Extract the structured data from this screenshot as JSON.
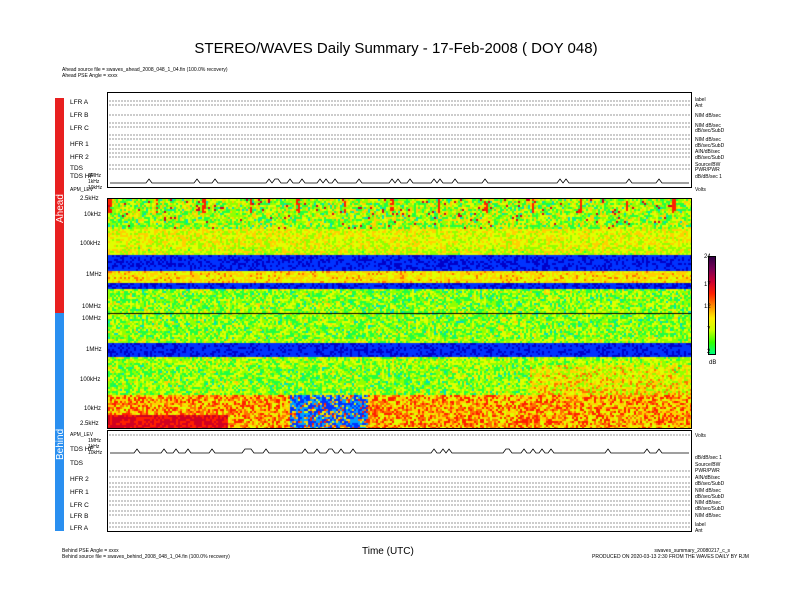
{
  "title": "STEREO/WAVES Daily Summary - 17-Feb-2008 ( DOY 048)",
  "ahead_info": [
    "Ahead source file = swaves_ahead_2008_048_1_04.fin (100.0% recovery)",
    "Ahead PSE Angle = xxxx"
  ],
  "behind_info": [
    "Behind PSE Angle = xxxx",
    "Behind source file = swaves_behind_2008_048_1_04.fin (100.0% recovery)"
  ],
  "footer_right": [
    "swaves_summary_20080217_c_s",
    "PRODUCED ON 2020-03-13 2:30 FROM THE WAVES DAILY BY RJM"
  ],
  "xlabel": "Time (UTC)",
  "side_labels": {
    "ahead": "Ahead",
    "behind": "Behind"
  },
  "colors": {
    "ahead_bar": "#e82020",
    "behind_bar": "#2a8ff0"
  },
  "ahead_rows": [
    {
      "name": "LFR A",
      "right": [
        "label",
        "Ant"
      ]
    },
    {
      "name": "LFR B",
      "right": [
        "NIM dB/sec"
      ]
    },
    {
      "name": "LFR C",
      "right": [
        "NIM dB/sec",
        "dB/sec/SubD"
      ]
    },
    {
      "name": "HFR 1",
      "right": [
        "NIM dB/sec",
        "dB/sec/SubD"
      ]
    },
    {
      "name": "HFR 2",
      "right": [
        "AIN/dB/sec",
        "dB/sec/SubD"
      ]
    },
    {
      "name": "TDS",
      "right": [
        "Source/BW",
        "PWR/PWR"
      ]
    },
    {
      "name": "TDS HF",
      "right": [
        "dB/dB/sec 1"
      ]
    }
  ],
  "behind_rows": [
    {
      "name": "TDS HF",
      "right": [
        "dB/dB/sec 1"
      ]
    },
    {
      "name": "TDS",
      "right": [
        "Source/BW",
        "PWR/PWR"
      ]
    },
    {
      "name": "HFR 2",
      "right": [
        "AIN/dB/sec",
        "dB/sec/SubD"
      ]
    },
    {
      "name": "HFR 1",
      "right": [
        "NIM dB/sec",
        "dB/sec/SubD"
      ]
    },
    {
      "name": "LFR C",
      "right": [
        "NIM dB/sec",
        "dB/sec/SubD"
      ]
    },
    {
      "name": "LFR B",
      "right": [
        "NIM dB/sec"
      ]
    },
    {
      "name": "LFR A",
      "right": [
        "label",
        "Ant"
      ]
    }
  ],
  "chart_data": {
    "type": "heatmap",
    "title": "STEREO/WAVES Daily Summary - 17-Feb-2008 ( DOY 048)",
    "xlabel": "Time (UTC)",
    "ahead_freq_ticks": [
      "2.5kHz",
      "10kHz",
      "100kHz",
      "1MHz",
      "10MHz"
    ],
    "behind_freq_ticks": [
      "10MHz",
      "1MHz",
      "100kHz",
      "10kHz",
      "2.5kHz"
    ],
    "ahead_tdshf_ticks": [
      "1MHz",
      "1kHz",
      "10kHz"
    ],
    "behind_tdshf_ticks": [
      "1MHz",
      "1kHz",
      "10kHz"
    ],
    "apmlev_label": "APM_LEV",
    "volts_label": "Volts",
    "colorbar": {
      "ticks": [
        24,
        17,
        12,
        7,
        2
      ],
      "unit": "dB",
      "range": [
        2,
        24
      ]
    }
  }
}
